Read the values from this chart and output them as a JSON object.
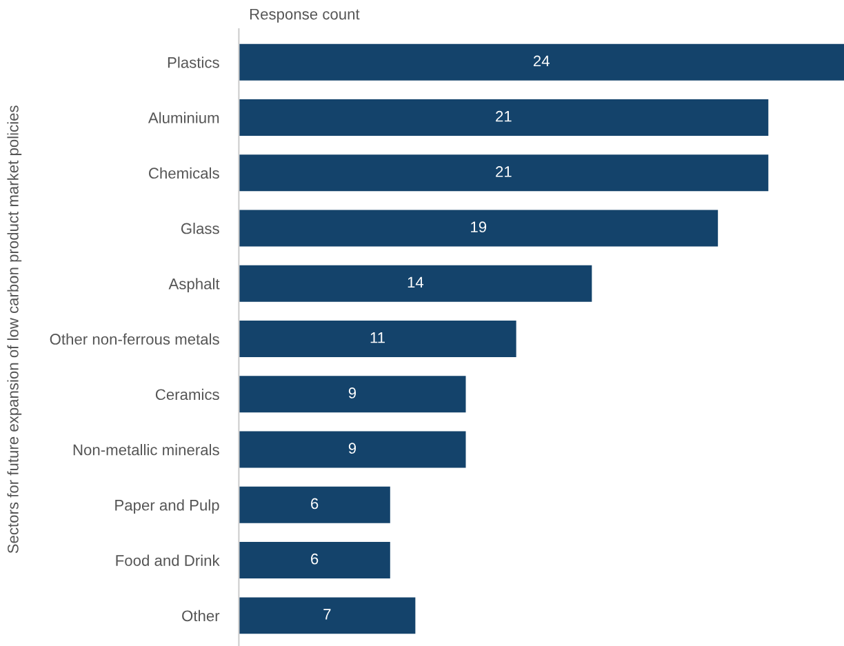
{
  "chart_data": {
    "type": "bar",
    "orientation": "horizontal",
    "xlabel": "Response count",
    "ylabel": "Sectors for future expansion of low carbon product market policies",
    "categories": [
      "Plastics",
      "Aluminium",
      "Chemicals",
      "Glass",
      "Asphalt",
      "Other non-ferrous metals",
      "Ceramics",
      "Non-metallic minerals",
      "Paper and Pulp",
      "Food and Drink",
      "Other"
    ],
    "values": [
      24,
      21,
      21,
      19,
      14,
      11,
      9,
      9,
      6,
      6,
      7
    ],
    "color": "#14436b",
    "xlim": [
      0,
      24
    ],
    "data_labels": true,
    "grid": false,
    "legend": false,
    "tick_labels": "y"
  }
}
